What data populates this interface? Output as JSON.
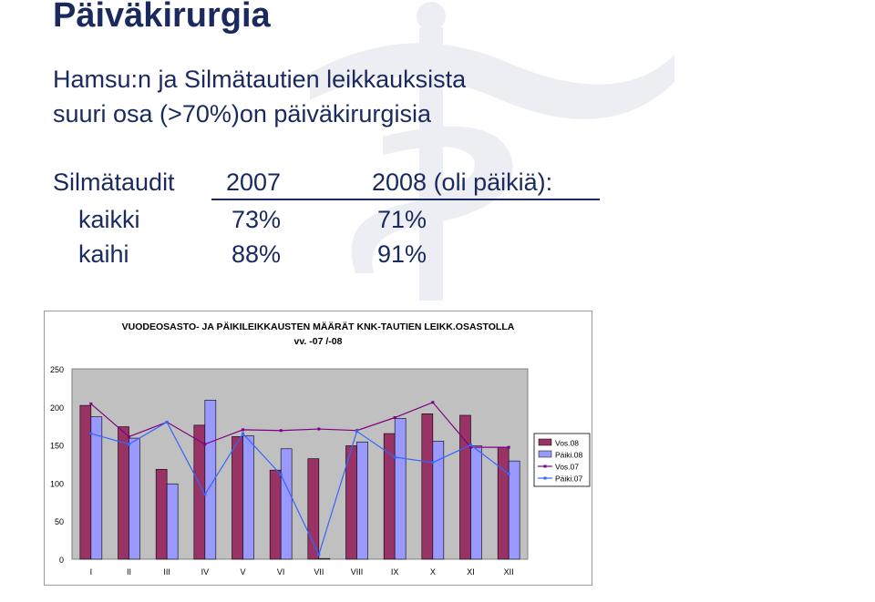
{
  "slide": {
    "title": "Päiväkirurgia",
    "subtitle_line1": "Hamsu:n ja Silmätautien leikkauksista",
    "subtitle_line2": "suuri osa (>70%)on päiväkirurgisia"
  },
  "stats_table": {
    "header_label": "Silmätaudit",
    "header_2007": "2007",
    "header_2008": "2008 (oli päikiä):",
    "rows": [
      {
        "label": "kaikki",
        "v2007": "73%",
        "v2008": "71%"
      },
      {
        "label": "kaihi",
        "v2007": "88%",
        "v2008": "91%"
      }
    ]
  },
  "chart_data": {
    "type": "bar",
    "title_line1": "VUODEOSASTO- JA PÄIKILEIKKAUSTEN MÄÄRÄT KNK-TAUTIEN LEIKK.OSASTOLLA",
    "title_line2": "vv. -07 /-08",
    "categories": [
      "I",
      "II",
      "III",
      "IV",
      "V",
      "VI",
      "VII",
      "VIII",
      "IX",
      "X",
      "XI",
      "XII"
    ],
    "ylim": [
      0,
      250
    ],
    "yticks": [
      0,
      50,
      100,
      150,
      200,
      250
    ],
    "legend_position": "right",
    "bar_series": [
      {
        "name": "Vos.08",
        "color": "#993366",
        "values": [
          202,
          174,
          118,
          176,
          161,
          117,
          132,
          149,
          165,
          191,
          189,
          147
        ]
      },
      {
        "name": "Päiki.08",
        "color": "#9999ff",
        "values": [
          187,
          159,
          99,
          209,
          162,
          145,
          1,
          154,
          185,
          155,
          149,
          129
        ]
      }
    ],
    "line_series": [
      {
        "name": "Vos.07",
        "color": "#800080",
        "values": [
          204,
          161,
          180,
          151,
          170,
          169,
          171,
          169,
          186,
          206,
          147,
          147
        ]
      },
      {
        "name": "Päiki.07",
        "color": "#3366ff",
        "values": [
          165,
          151,
          180,
          85,
          165,
          111,
          6,
          168,
          134,
          127,
          150,
          112
        ]
      }
    ]
  }
}
